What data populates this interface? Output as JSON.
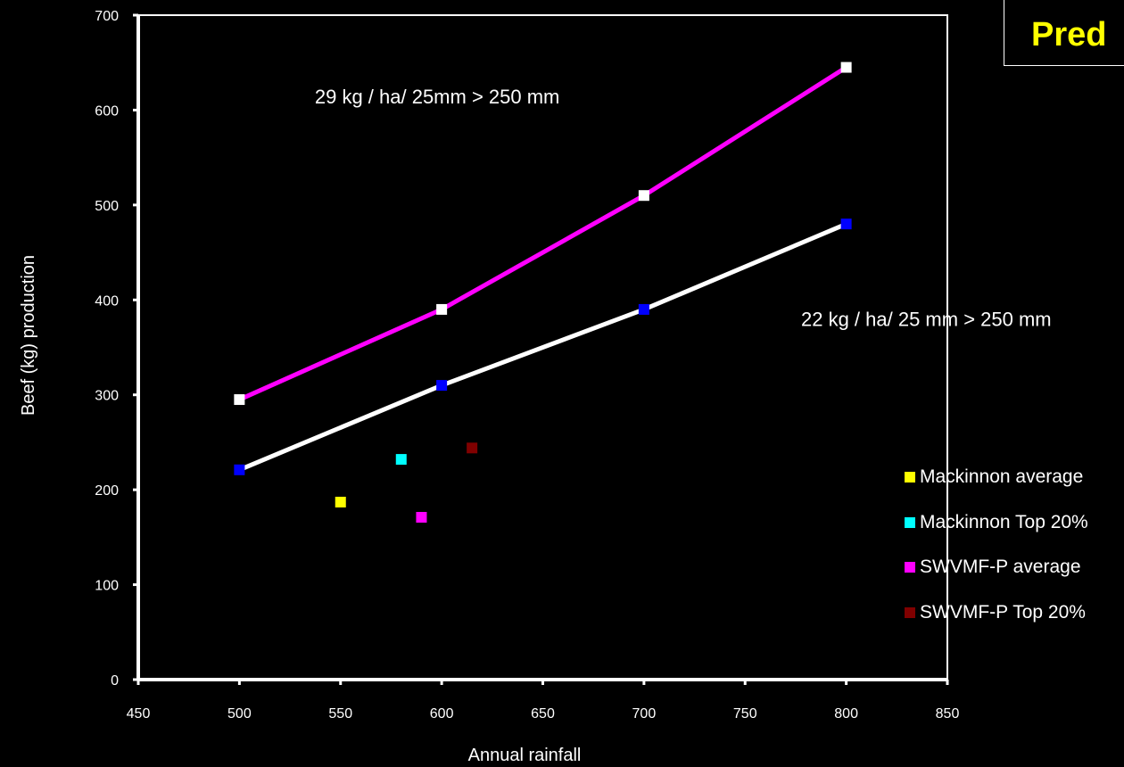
{
  "title": "Pred",
  "chart_data": {
    "type": "scatter",
    "xlabel": "Annual rainfall",
    "ylabel": "Beef (kg) production",
    "xlim": [
      450,
      850
    ],
    "ylim": [
      0,
      700
    ],
    "xticks": [
      450,
      500,
      550,
      600,
      650,
      700,
      750,
      800,
      850
    ],
    "yticks": [
      0,
      100,
      200,
      300,
      400,
      500,
      600,
      700
    ],
    "grid": false,
    "legend_position": "right",
    "lines": [
      {
        "line_color": "#ff00ff",
        "marker_color": "#ffffff",
        "x": [
          500,
          600,
          700,
          800
        ],
        "y": [
          295,
          390,
          510,
          645
        ]
      },
      {
        "line_color": "#ffffff",
        "marker_color": "#0000ff",
        "x": [
          500,
          600,
          700,
          800
        ],
        "y": [
          221,
          310,
          390,
          480
        ]
      }
    ],
    "series": [
      {
        "name": "Mackinnon average",
        "color": "#ffff00",
        "x": [
          550
        ],
        "y": [
          187
        ]
      },
      {
        "name": "Mackinnon Top 20%",
        "color": "#00ffff",
        "x": [
          580
        ],
        "y": [
          232
        ]
      },
      {
        "name": "SWVMF-P average",
        "color": "#ff00ff",
        "x": [
          590
        ],
        "y": [
          171
        ]
      },
      {
        "name": "SWVMF-P Top 20%",
        "color": "#800000",
        "x": [
          615
        ],
        "y": [
          244
        ]
      }
    ],
    "annotations": [
      {
        "text": "29 kg / ha/ 25mm > 250 mm",
        "x": 600,
        "y": 607
      },
      {
        "text": "22 kg / ha/ 25 mm > 250 mm",
        "x": 770,
        "y": 395
      }
    ]
  }
}
